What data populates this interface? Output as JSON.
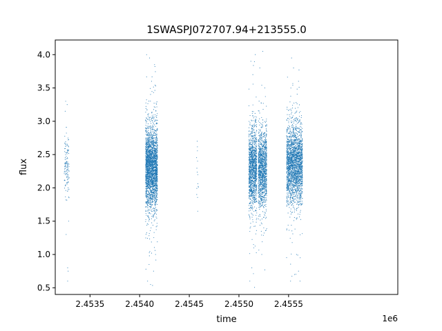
{
  "chart_data": {
    "type": "scatter",
    "title": "1SWASPJ072707.94+213555.0",
    "xlabel": "time",
    "ylabel": "flux",
    "x_offset_label": "1e6",
    "xlim": [
      2453150,
      2456600
    ],
    "ylim": [
      0.4,
      4.22
    ],
    "x_ticks": [
      2453500,
      2454000,
      2454500,
      2455000,
      2455500
    ],
    "x_tick_labels": [
      "2.4535",
      "2.4540",
      "2.4545",
      "2.4550",
      "2.4555"
    ],
    "y_ticks": [
      0.5,
      1.0,
      1.5,
      2.0,
      2.5,
      3.0,
      3.5,
      4.0
    ],
    "y_tick_labels": [
      "0.5",
      "1.0",
      "1.5",
      "2.0",
      "2.5",
      "3.0",
      "3.5",
      "4.0"
    ],
    "grid": false,
    "marker_color": "#1f77b4",
    "series": [
      {
        "clusters": [
          {
            "x_range": [
              2453240,
              2453290
            ],
            "y_center": 2.35,
            "y_spread": 0.22,
            "count": 120,
            "outliers": [
              [
                2453255,
                3.3
              ],
              [
                2453270,
                3.25
              ],
              [
                2453260,
                1.3
              ],
              [
                2453275,
                0.8
              ],
              [
                2453280,
                0.75
              ],
              [
                2453275,
                0.6
              ],
              [
                2453250,
                3.15
              ],
              [
                2453285,
                1.5
              ]
            ]
          },
          {
            "x_range": [
              2454060,
              2454180
            ],
            "y_center": 2.3,
            "y_spread": 0.3,
            "count": 2600,
            "outliers": [
              [
                2454070,
                4.0
              ],
              [
                2454100,
                3.95
              ],
              [
                2454120,
                3.6
              ],
              [
                2454150,
                3.85
              ],
              [
                2454080,
                0.6
              ],
              [
                2454110,
                0.55
              ],
              [
                2454140,
                0.75
              ],
              [
                2454095,
                0.85
              ],
              [
                2454160,
                1.0
              ]
            ]
          },
          {
            "x_range": [
              2454570,
              2454595
            ],
            "y_center": 2.25,
            "y_spread": 0.25,
            "count": 12,
            "outliers": [
              [
                2454580,
                2.7
              ],
              [
                2454585,
                1.65
              ],
              [
                2454575,
                1.9
              ]
            ]
          },
          {
            "x_range": [
              2455100,
              2455180
            ],
            "y_center": 2.3,
            "y_spread": 0.28,
            "count": 1300,
            "outliers": [
              [
                2455120,
                3.9
              ],
              [
                2455140,
                3.7
              ],
              [
                2455110,
                0.6
              ],
              [
                2455130,
                0.8
              ],
              [
                2455150,
                1.1
              ]
            ]
          },
          {
            "x_range": [
              2455195,
              2455280
            ],
            "y_center": 2.3,
            "y_spread": 0.28,
            "count": 1300,
            "outliers": [
              [
                2455240,
                4.05
              ],
              [
                2455210,
                3.8
              ],
              [
                2455260,
                3.5
              ],
              [
                2455250,
                1.4
              ],
              [
                2455230,
                1.0
              ]
            ]
          },
          {
            "x_range": [
              2455480,
              2455640
            ],
            "y_center": 2.35,
            "y_spread": 0.28,
            "count": 2400,
            "outliers": [
              [
                2455530,
                3.95
              ],
              [
                2455550,
                3.8
              ],
              [
                2455600,
                3.6
              ],
              [
                2455520,
                0.6
              ],
              [
                2455560,
                0.7
              ],
              [
                2455600,
                0.75
              ],
              [
                2455615,
                0.6
              ],
              [
                2455580,
                1.0
              ]
            ]
          }
        ]
      }
    ]
  }
}
